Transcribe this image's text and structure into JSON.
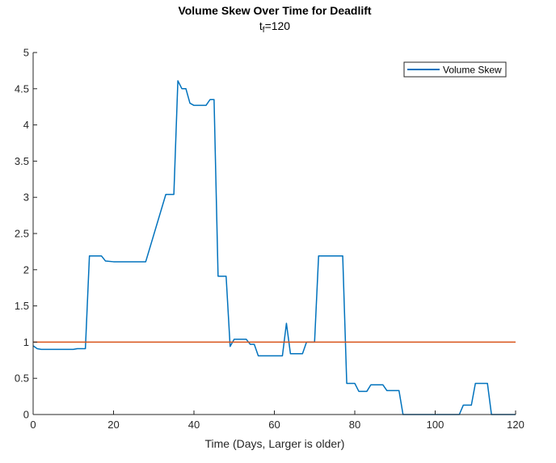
{
  "chart_data": {
    "type": "line",
    "title": "Volume Skew Over Time for Deadlift",
    "subtitle": {
      "main": "t",
      "sub": "f",
      "suffix": "=120"
    },
    "xlabel": "Time (Days, Larger is older)",
    "ylabel": "",
    "xlim": [
      0,
      120
    ],
    "ylim": [
      0,
      5
    ],
    "xticks": [
      0,
      20,
      40,
      60,
      80,
      100,
      120
    ],
    "yticks": [
      0,
      0.5,
      1,
      1.5,
      2,
      2.5,
      3,
      3.5,
      4,
      4.5,
      5
    ],
    "ytick_labels": [
      "0",
      "0.5",
      "1",
      "1.5",
      "2",
      "2.5",
      "3",
      "3.5",
      "4",
      "4.5",
      "5"
    ],
    "grid": false,
    "legend_position": "top-right",
    "series": [
      {
        "name": "Volume Skew",
        "color": "#0072BD",
        "x": [
          0,
          1,
          2,
          3,
          10,
          11,
          13,
          14,
          15,
          17,
          18,
          20,
          27,
          28,
          33,
          34,
          35,
          36,
          37,
          38,
          39,
          40,
          41,
          42,
          43,
          44,
          45,
          46,
          47,
          48,
          49,
          50,
          51,
          53,
          54,
          55,
          56,
          57,
          58,
          62,
          63,
          64,
          65,
          66,
          67,
          68,
          69,
          70,
          71,
          72,
          73,
          77,
          78,
          79,
          80,
          81,
          82,
          83,
          84,
          85,
          86,
          87,
          88,
          89,
          90,
          91,
          92,
          100,
          106,
          107,
          108,
          109,
          110,
          111,
          112,
          113,
          114,
          120
        ],
        "y": [
          0.95,
          0.91,
          0.9,
          0.9,
          0.9,
          0.91,
          0.91,
          2.19,
          2.19,
          2.19,
          2.12,
          2.11,
          2.11,
          2.11,
          3.04,
          3.04,
          3.04,
          4.61,
          4.5,
          4.5,
          4.3,
          4.27,
          4.27,
          4.27,
          4.27,
          4.35,
          4.35,
          1.91,
          1.91,
          1.91,
          0.94,
          1.04,
          1.04,
          1.04,
          0.97,
          0.97,
          0.81,
          0.81,
          0.81,
          0.81,
          1.26,
          0.84,
          0.84,
          0.84,
          0.84,
          1.0,
          1.0,
          1.0,
          2.19,
          2.19,
          2.19,
          2.19,
          0.43,
          0.43,
          0.43,
          0.32,
          0.32,
          0.32,
          0.41,
          0.41,
          0.41,
          0.41,
          0.33,
          0.33,
          0.33,
          0.33,
          0.0,
          0.0,
          0.0,
          0.13,
          0.13,
          0.13,
          0.43,
          0.43,
          0.43,
          0.43,
          0.0,
          0.0
        ]
      },
      {
        "name": "",
        "color": "#D95319",
        "x": [
          0,
          120
        ],
        "y": [
          1,
          1
        ]
      }
    ]
  }
}
